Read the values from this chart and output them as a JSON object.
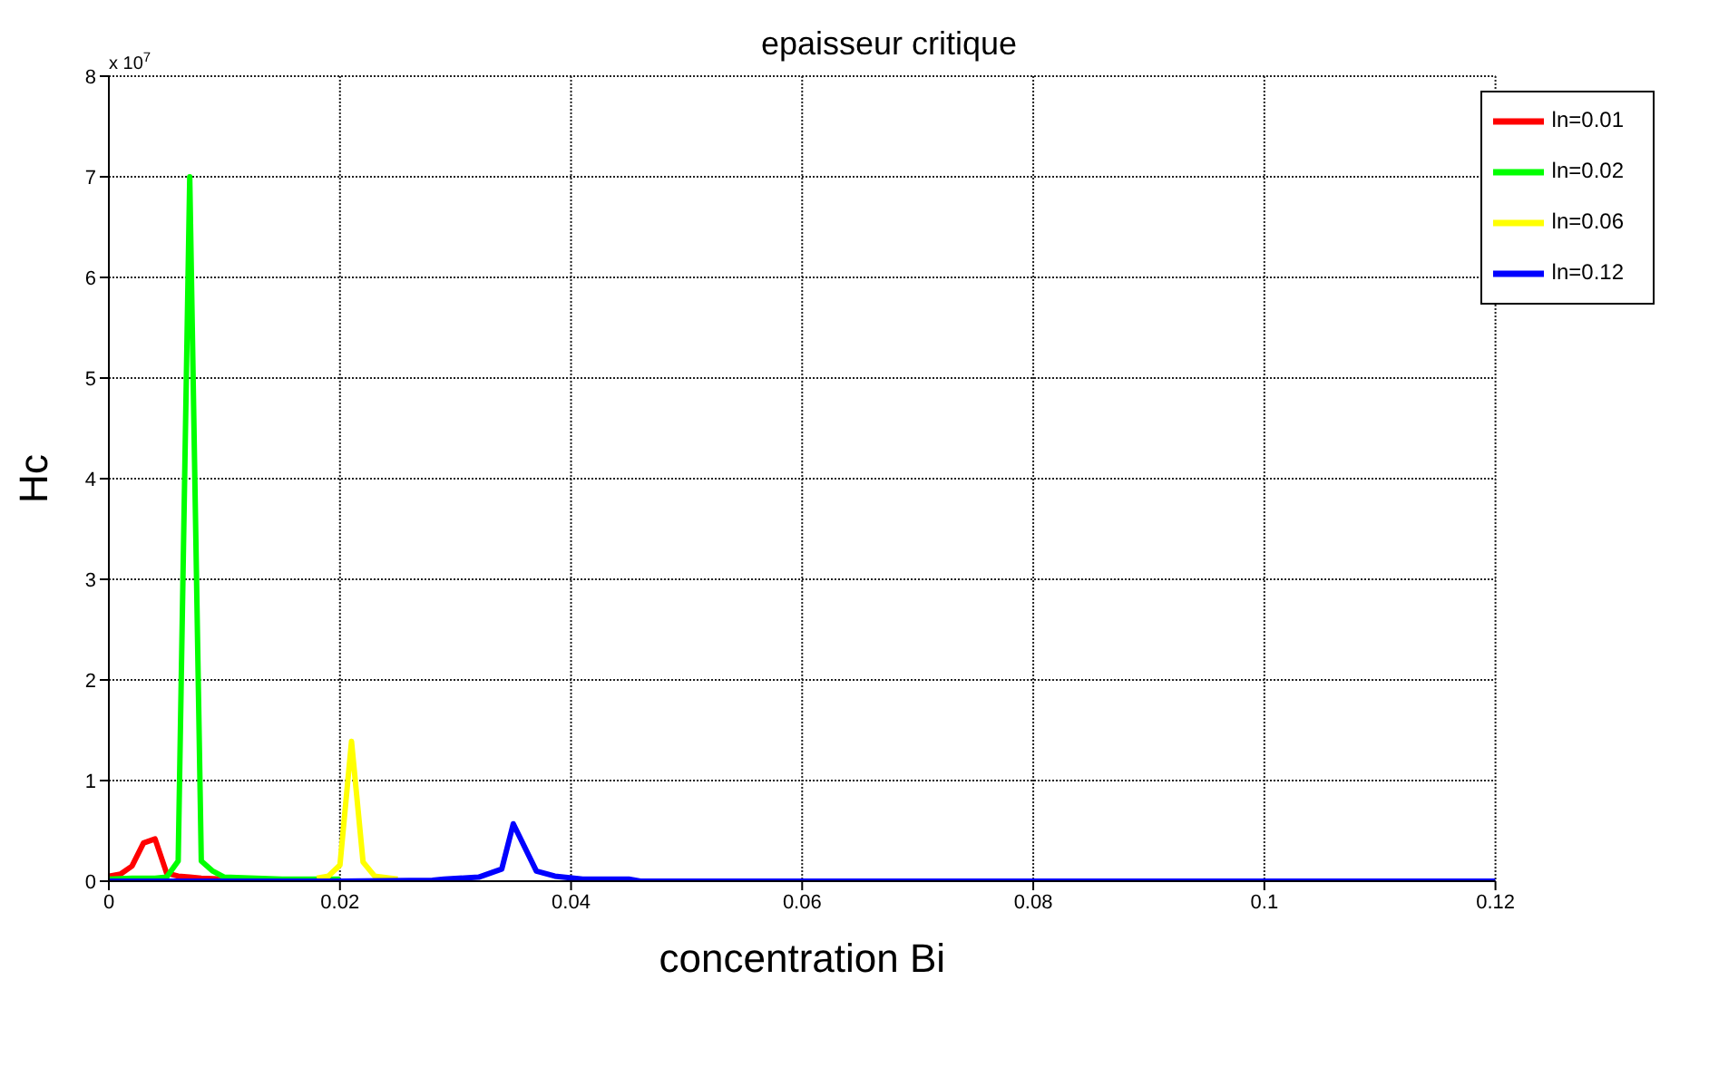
{
  "chart_data": {
    "type": "line",
    "title": "epaisseur critique",
    "xlabel": "concentration Bi",
    "ylabel": "Hc",
    "annotations": [
      "x 10$^{7}$"
    ],
    "xlim": [
      0,
      0.12
    ],
    "xticks": [
      0,
      0.02,
      0.04,
      0.06,
      0.08,
      0.1,
      0.12
    ],
    "ylim": [
      0,
      8
    ],
    "yticks": [
      0,
      1,
      2,
      3,
      4,
      5,
      6,
      7,
      8
    ],
    "grid": true,
    "legend": "top right",
    "marker": "none",
    "line_style": "solid",
    "series": [
      {
        "name": "ln=0.01",
        "color": "#ff0000",
        "x": [
          0,
          0.001,
          0.002,
          0.003,
          0.004,
          0.005,
          0.006,
          0.007,
          0.008,
          0.01
        ],
        "values": [
          0.05,
          0.07,
          0.15,
          0.38,
          0.42,
          0.08,
          0.05,
          0.04,
          0.03,
          0.02
        ]
      },
      {
        "name": "ln=0.02",
        "color": "#00ff00",
        "x": [
          0,
          0.002,
          0.004,
          0.005,
          0.006,
          0.007,
          0.008,
          0.009,
          0.01,
          0.015,
          0.02
        ],
        "values": [
          0.02,
          0.03,
          0.03,
          0.04,
          0.2,
          7,
          0.2,
          0.1,
          0.04,
          0.02,
          0.02
        ]
      },
      {
        "name": "ln=0.06",
        "color": "#ffff00",
        "x": [
          0.018,
          0.019,
          0.02,
          0.021,
          0.022,
          0.023,
          0.025
        ],
        "values": [
          0.03,
          0.05,
          0.16,
          1.39,
          0.19,
          0.05,
          0.02
        ]
      },
      {
        "name": "ln=0.12",
        "color": "#0000ff",
        "x": [
          0,
          0.02,
          0.028,
          0.029,
          0.032,
          0.034,
          0.035,
          0.037,
          0.0386,
          0.041,
          0.045,
          0.046,
          0.06,
          0.12
        ],
        "values": [
          0,
          0,
          0.01,
          0.02,
          0.04,
          0.12,
          0.57,
          0.1,
          0.05,
          0.02,
          0.02,
          0,
          0,
          0
        ]
      }
    ]
  }
}
